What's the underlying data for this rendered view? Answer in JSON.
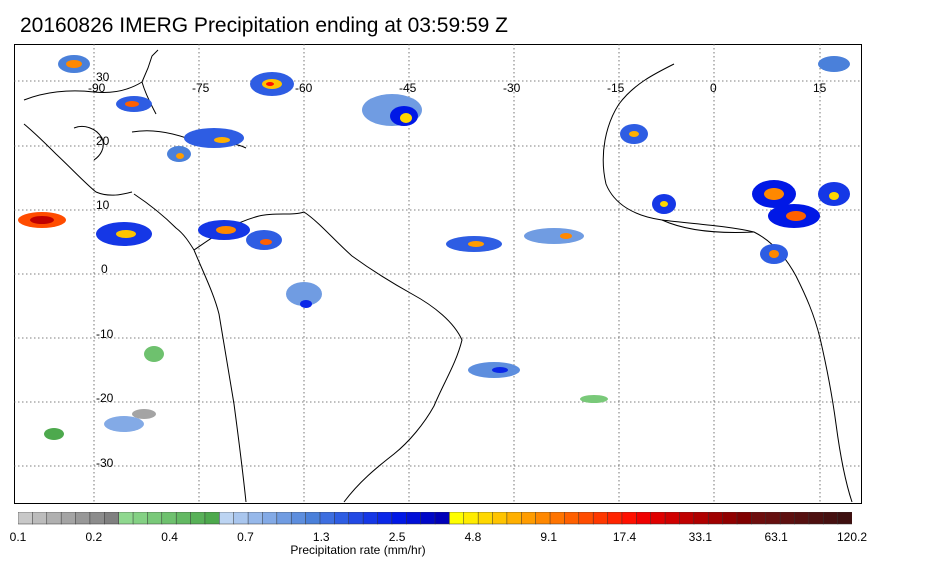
{
  "title": "20160826 IMERG Precipitation ending at 03:59:59 Z",
  "lon_labels": [
    "-90",
    "-75",
    "-60",
    "-45",
    "-30",
    "-15",
    "0",
    "15"
  ],
  "lat_labels": [
    "30",
    "20",
    "10",
    "0",
    "-10",
    "-20",
    "-30"
  ],
  "colorbar": {
    "labels": [
      "0.1",
      "0.2",
      "0.4",
      "0.7",
      "1.3",
      "2.5",
      "4.8",
      "9.1",
      "17.4",
      "33.1",
      "63.1",
      "120.2"
    ],
    "title": "Precipitation rate (mm/hr)",
    "colors": [
      "#c8c8c8",
      "#bcbcbc",
      "#b0b0b0",
      "#a4a4a4",
      "#989898",
      "#8c8c8c",
      "#808080",
      "#8fd88f",
      "#84d184",
      "#79c979",
      "#6ec16e",
      "#63b963",
      "#58b158",
      "#4da94d",
      "#bcd4f2",
      "#a9c6ee",
      "#96b8ea",
      "#83aae6",
      "#709ce2",
      "#5d8ede",
      "#4a80da",
      "#3d6ee0",
      "#2e5de3",
      "#2249e4",
      "#1537e6",
      "#0a27e8",
      "#0018e6",
      "#000fd8",
      "#0007c8",
      "#0000b8",
      "#ffff00",
      "#ffec00",
      "#ffd800",
      "#ffc400",
      "#ffb000",
      "#ff9c00",
      "#ff8800",
      "#ff7400",
      "#ff6000",
      "#ff4c00",
      "#ff3800",
      "#ff2400",
      "#ff1000",
      "#f00000",
      "#e00000",
      "#d00000",
      "#c00000",
      "#b00000",
      "#a00000",
      "#900000",
      "#800000",
      "#6e0e0e",
      "#661010",
      "#5e1010",
      "#561010",
      "#4e1010",
      "#461010",
      "#3e1010"
    ]
  }
}
